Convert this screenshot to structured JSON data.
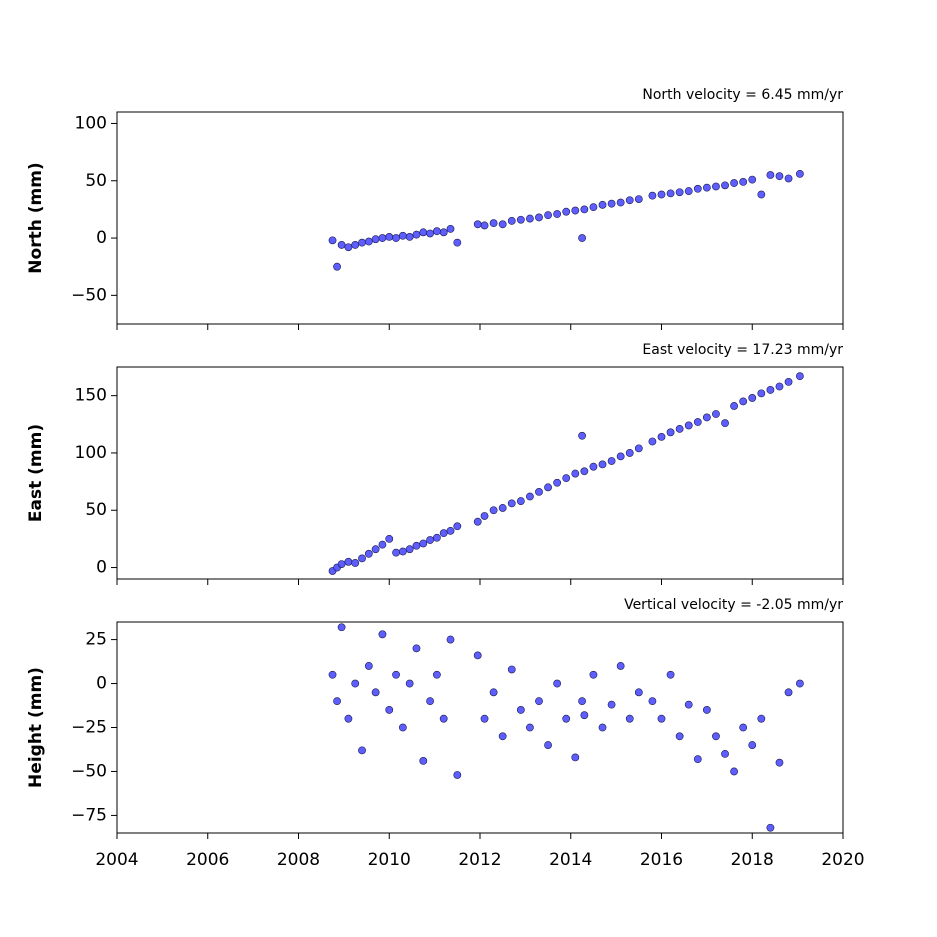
{
  "chart_data": [
    {
      "type": "scatter",
      "title": "North velocity = 6.45 mm/yr",
      "y_label": "North (mm)",
      "color": "#4d4dff",
      "edge_color": "#1a1a4d",
      "xlim": [
        2004,
        2020
      ],
      "xticks": [
        2004,
        2006,
        2008,
        2010,
        2012,
        2014,
        2016,
        2018,
        2020
      ],
      "ylim": [
        -75,
        110
      ],
      "yticks": [
        {
          "value": -50,
          "label": "−50"
        },
        0,
        50,
        100
      ],
      "x": [
        2008.75,
        2008.85,
        2008.95,
        2009.1,
        2009.25,
        2009.4,
        2009.55,
        2009.7,
        2009.85,
        2010.0,
        2010.15,
        2010.3,
        2010.45,
        2010.6,
        2010.75,
        2010.9,
        2011.05,
        2011.2,
        2011.35,
        2011.5,
        2011.95,
        2012.1,
        2012.3,
        2012.5,
        2012.7,
        2012.9,
        2013.1,
        2013.3,
        2013.5,
        2013.7,
        2013.9,
        2014.1,
        2014.25,
        2014.3,
        2014.5,
        2014.7,
        2014.9,
        2015.1,
        2015.3,
        2015.5,
        2015.8,
        2016.0,
        2016.2,
        2016.4,
        2016.6,
        2016.8,
        2017.0,
        2017.2,
        2017.4,
        2017.6,
        2017.8,
        2018.0,
        2018.2,
        2018.4,
        2018.6,
        2018.8,
        2019.05
      ],
      "values": [
        -2,
        -25,
        -6,
        -8,
        -6,
        -4,
        -3,
        -1,
        0,
        1,
        0,
        2,
        1,
        3,
        5,
        4,
        6,
        5,
        8,
        -4,
        12,
        11,
        13,
        12,
        15,
        16,
        17,
        18,
        20,
        21,
        23,
        24,
        0,
        25,
        27,
        29,
        30,
        31,
        33,
        34,
        37,
        38,
        39,
        40,
        41,
        43,
        44,
        45,
        46,
        48,
        49,
        51,
        38,
        55,
        54,
        52,
        56
      ]
    },
    {
      "type": "scatter",
      "title": "East velocity = 17.23 mm/yr",
      "y_label": "East (mm)",
      "color": "#4d4dff",
      "edge_color": "#1a1a4d",
      "xlim": [
        2004,
        2020
      ],
      "xticks": [
        2004,
        2006,
        2008,
        2010,
        2012,
        2014,
        2016,
        2018,
        2020
      ],
      "ylim": [
        -10,
        175
      ],
      "yticks": [
        0,
        50,
        100,
        150
      ],
      "x": [
        2008.75,
        2008.85,
        2008.95,
        2009.1,
        2009.25,
        2009.4,
        2009.55,
        2009.7,
        2009.85,
        2010.0,
        2010.15,
        2010.3,
        2010.45,
        2010.6,
        2010.75,
        2010.9,
        2011.05,
        2011.2,
        2011.35,
        2011.5,
        2011.95,
        2012.1,
        2012.3,
        2012.5,
        2012.7,
        2012.9,
        2013.1,
        2013.3,
        2013.5,
        2013.7,
        2013.9,
        2014.1,
        2014.25,
        2014.3,
        2014.5,
        2014.7,
        2014.9,
        2015.1,
        2015.3,
        2015.5,
        2015.8,
        2016.0,
        2016.2,
        2016.4,
        2016.6,
        2016.8,
        2017.0,
        2017.2,
        2017.4,
        2017.6,
        2017.8,
        2018.0,
        2018.2,
        2018.4,
        2018.6,
        2018.8,
        2019.05
      ],
      "values": [
        -3,
        0,
        3,
        5,
        4,
        8,
        12,
        16,
        20,
        25,
        13,
        14,
        16,
        19,
        21,
        24,
        26,
        30,
        32,
        36,
        40,
        45,
        50,
        52,
        56,
        58,
        62,
        66,
        70,
        74,
        78,
        82,
        115,
        84,
        88,
        90,
        93,
        97,
        100,
        104,
        110,
        114,
        118,
        121,
        124,
        127,
        131,
        134,
        126,
        141,
        145,
        148,
        152,
        155,
        158,
        162,
        167
      ]
    },
    {
      "type": "scatter",
      "title": "Vertical velocity = -2.05 mm/yr",
      "y_label": "Height (mm)",
      "color": "#4d4dff",
      "edge_color": "#1a1a4d",
      "xlim": [
        2004,
        2020
      ],
      "xticks": [
        2004,
        2006,
        2008,
        2010,
        2012,
        2014,
        2016,
        2018,
        2020
      ],
      "ylim": [
        -85,
        35
      ],
      "yticks": [
        {
          "value": -75,
          "label": "−75"
        },
        {
          "value": -50,
          "label": "−50"
        },
        {
          "value": -25,
          "label": "−25"
        },
        0,
        25
      ],
      "x": [
        2008.75,
        2008.85,
        2008.95,
        2009.1,
        2009.25,
        2009.4,
        2009.55,
        2009.7,
        2009.85,
        2010.0,
        2010.15,
        2010.3,
        2010.45,
        2010.6,
        2010.75,
        2010.9,
        2011.05,
        2011.2,
        2011.35,
        2011.5,
        2011.95,
        2012.1,
        2012.3,
        2012.5,
        2012.7,
        2012.9,
        2013.1,
        2013.3,
        2013.5,
        2013.7,
        2013.9,
        2014.1,
        2014.25,
        2014.3,
        2014.5,
        2014.7,
        2014.9,
        2015.1,
        2015.3,
        2015.5,
        2015.8,
        2016.0,
        2016.2,
        2016.4,
        2016.6,
        2016.8,
        2017.0,
        2017.2,
        2017.4,
        2017.6,
        2017.8,
        2018.0,
        2018.2,
        2018.4,
        2018.6,
        2018.8,
        2019.05
      ],
      "values": [
        5,
        -10,
        32,
        -20,
        0,
        -38,
        10,
        -5,
        28,
        -15,
        5,
        -25,
        0,
        20,
        -44,
        -10,
        5,
        -20,
        25,
        -52,
        16,
        -20,
        -5,
        -30,
        8,
        -15,
        -25,
        -10,
        -35,
        0,
        -20,
        -42,
        -10,
        -18,
        5,
        -25,
        -12,
        10,
        -20,
        -5,
        -10,
        -20,
        5,
        -30,
        -12,
        -43,
        -15,
        -30,
        -40,
        -50,
        -25,
        -35,
        -20,
        -82,
        -45,
        -5,
        0
      ],
      "xtick_labels": [
        "2004",
        "2006",
        "2008",
        "2010",
        "2012",
        "2014",
        "2016",
        "2018",
        "2020"
      ]
    }
  ]
}
